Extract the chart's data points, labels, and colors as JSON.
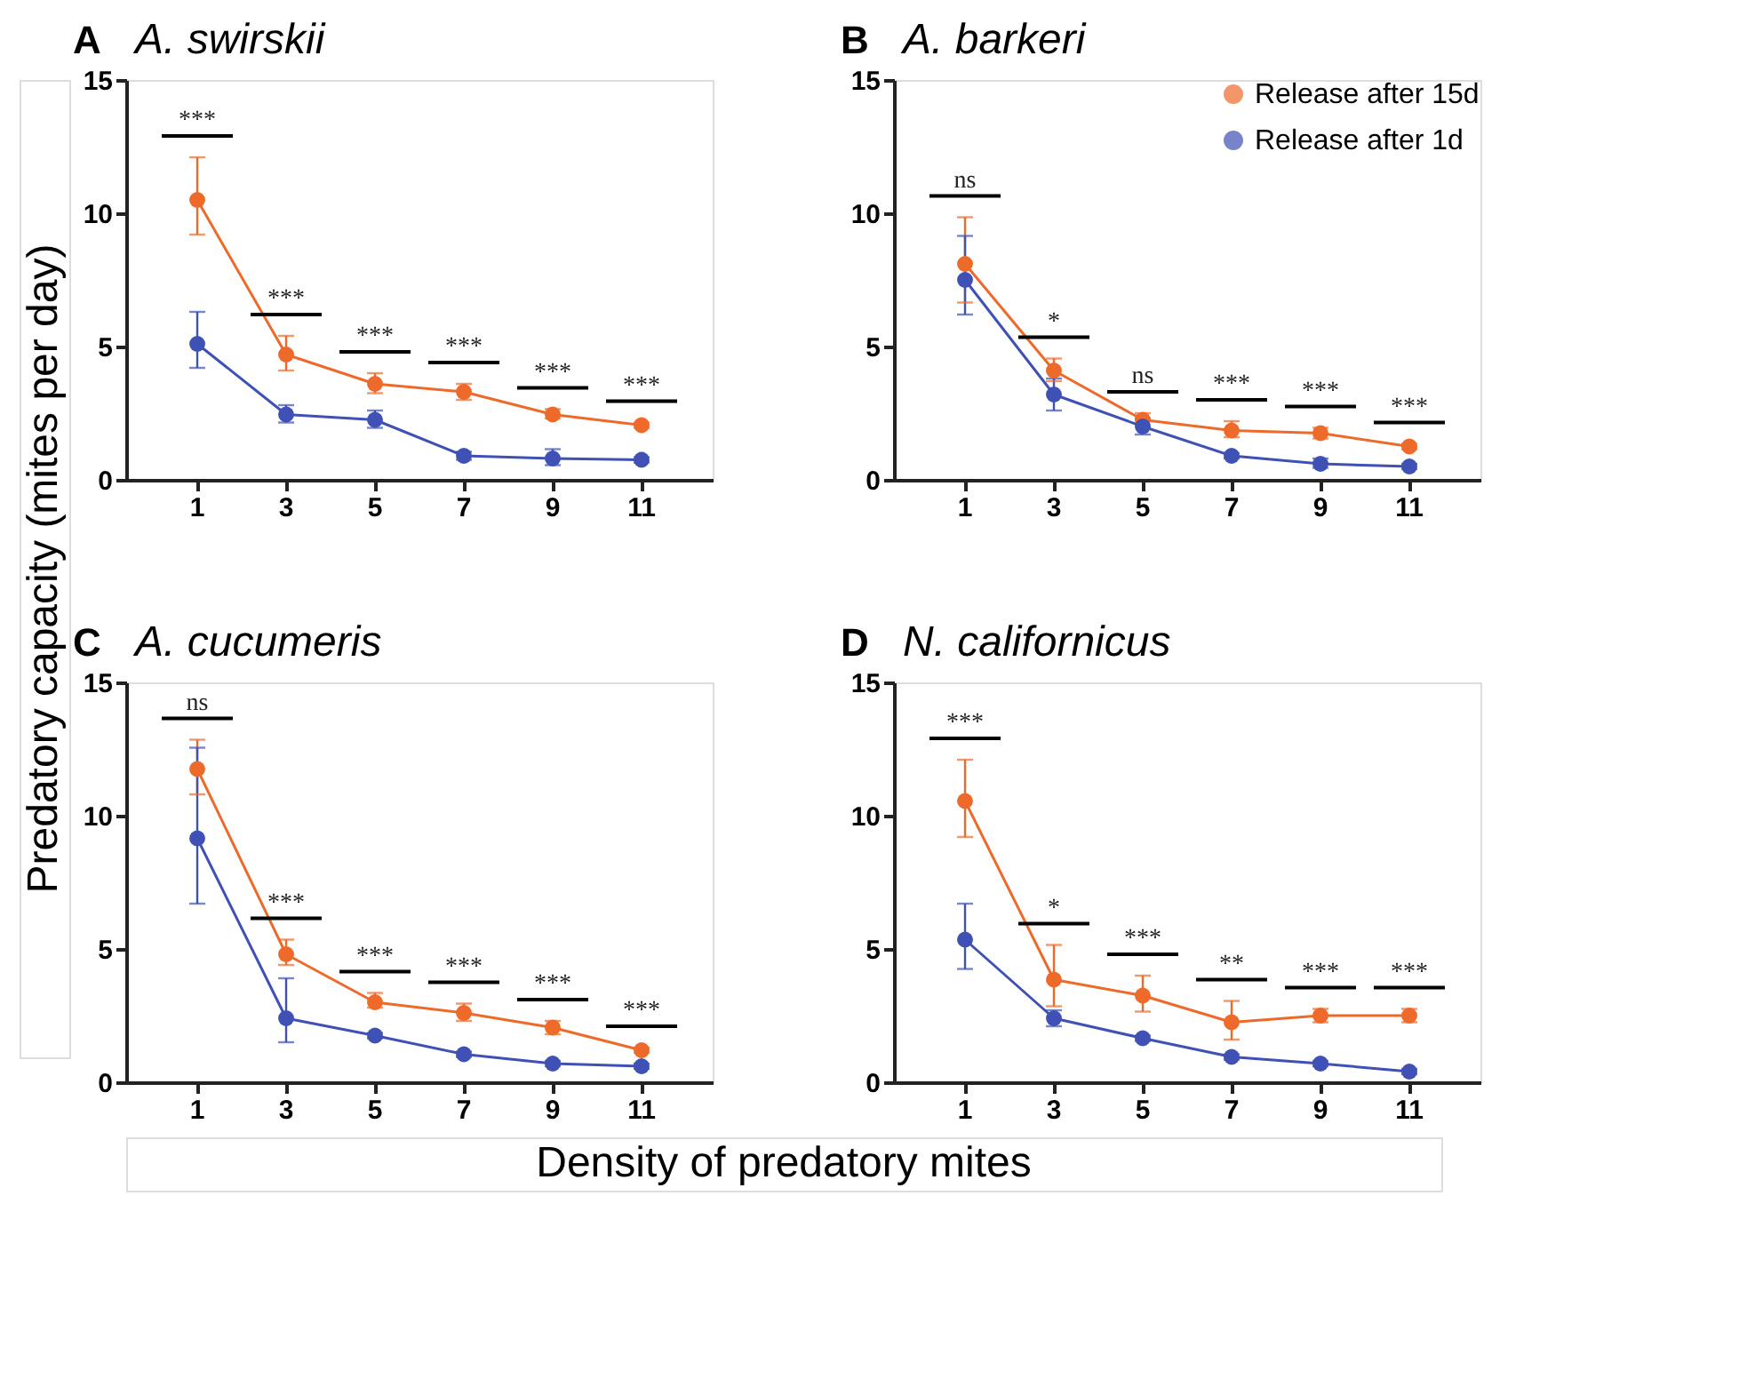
{
  "chart_data": [
    {
      "type": "line",
      "title": "A. swirskii",
      "ylabel": "Predatory capacity (mites per day)",
      "categories": [
        "1",
        "3",
        "5",
        "7",
        "9",
        "11"
      ],
      "ylim": [
        0,
        15
      ],
      "yticks": [
        0,
        5,
        10,
        15
      ],
      "grid": false,
      "marker": "circle",
      "series": [
        {
          "color": "#ee6a2a",
          "values": [
            10.5,
            4.7,
            3.6,
            3.3,
            2.45,
            2.05
          ],
          "errors": [
            [
              9.2,
              12.1
            ],
            [
              4.1,
              5.4
            ],
            [
              3.25,
              4.0
            ],
            [
              3.0,
              3.6
            ],
            [
              2.3,
              2.65
            ],
            [
              1.95,
              2.15
            ]
          ]
        },
        {
          "color": "#3f51b5",
          "values": [
            5.1,
            2.45,
            2.25,
            0.9,
            0.8,
            0.75
          ],
          "errors": [
            [
              4.2,
              6.3
            ],
            [
              2.15,
              2.8
            ],
            [
              1.95,
              2.6
            ],
            [
              0.75,
              1.05
            ],
            [
              0.55,
              1.15
            ],
            [
              0.65,
              0.85
            ]
          ]
        }
      ],
      "annotations": [
        "A",
        "***",
        "***",
        "***",
        "***",
        "***",
        "***"
      ]
    },
    {
      "type": "line",
      "title": "A. barkeri",
      "categories": [
        "1",
        "3",
        "5",
        "7",
        "9",
        "11"
      ],
      "ylim": [
        0,
        15
      ],
      "yticks": [
        0,
        5,
        10,
        15
      ],
      "grid": false,
      "marker": "circle",
      "legend": "top right",
      "series": [
        {
          "name": "Release after 15d",
          "color": "#ee6a2a",
          "values": [
            8.1,
            4.1,
            2.25,
            1.85,
            1.75,
            1.25
          ],
          "errors": [
            [
              6.65,
              9.85
            ],
            [
              3.7,
              4.55
            ],
            [
              2.25,
              2.5
            ],
            [
              1.6,
              2.2
            ],
            [
              1.55,
              1.95
            ],
            [
              1.15,
              1.35
            ]
          ]
        },
        {
          "name": "Release after 1d",
          "color": "#3f51b5",
          "values": [
            7.5,
            3.2,
            2.0,
            0.9,
            0.6,
            0.5
          ],
          "errors": [
            [
              6.2,
              9.15
            ],
            [
              2.6,
              3.8
            ],
            [
              1.7,
              2.3
            ],
            [
              0.8,
              1.0
            ],
            [
              0.45,
              0.8
            ],
            [
              0.4,
              0.6
            ]
          ]
        }
      ],
      "annotations": [
        "B",
        "ns",
        "*",
        "ns",
        "***",
        "***",
        "***"
      ]
    },
    {
      "type": "line",
      "title": "A. cucumeris",
      "xlabel": "Density of predatory mites",
      "categories": [
        "1",
        "3",
        "5",
        "7",
        "9",
        "11"
      ],
      "ylim": [
        0,
        15
      ],
      "yticks": [
        0,
        5,
        10,
        15
      ],
      "grid": false,
      "marker": "circle",
      "series": [
        {
          "color": "#ee6a2a",
          "values": [
            11.75,
            4.8,
            3.0,
            2.6,
            2.05,
            1.2
          ],
          "errors": [
            [
              10.8,
              12.85
            ],
            [
              4.4,
              5.35
            ],
            [
              2.8,
              3.35
            ],
            [
              2.3,
              2.95
            ],
            [
              1.8,
              2.3
            ],
            [
              1.1,
              1.3
            ]
          ]
        },
        {
          "color": "#3f51b5",
          "values": [
            9.15,
            2.4,
            1.75,
            1.05,
            0.7,
            0.6
          ],
          "errors": [
            [
              6.7,
              12.55
            ],
            [
              1.5,
              3.9
            ],
            [
              1.65,
              1.85
            ],
            [
              0.95,
              1.15
            ],
            [
              0.6,
              0.8
            ],
            [
              0.5,
              0.7
            ]
          ]
        }
      ],
      "annotations": [
        "C",
        "ns",
        "***",
        "***",
        "***",
        "***",
        "***"
      ]
    },
    {
      "type": "line",
      "title": "N. californicus",
      "categories": [
        "1",
        "3",
        "5",
        "7",
        "9",
        "11"
      ],
      "ylim": [
        0,
        15
      ],
      "yticks": [
        0,
        5,
        10,
        15
      ],
      "grid": false,
      "marker": "circle",
      "series": [
        {
          "color": "#ee6a2a",
          "values": [
            10.55,
            3.85,
            3.25,
            2.25,
            2.5,
            2.5
          ],
          "errors": [
            [
              9.2,
              12.1
            ],
            [
              2.85,
              5.15
            ],
            [
              2.65,
              4.0
            ],
            [
              1.6,
              3.05
            ],
            [
              2.25,
              2.75
            ],
            [
              2.25,
              2.75
            ]
          ]
        },
        {
          "color": "#3f51b5",
          "values": [
            5.35,
            2.4,
            1.65,
            0.95,
            0.7,
            0.4
          ],
          "errors": [
            [
              4.25,
              6.7
            ],
            [
              2.1,
              2.7
            ],
            [
              1.55,
              1.75
            ],
            [
              0.85,
              1.05
            ],
            [
              0.6,
              0.8
            ],
            [
              0.3,
              0.5
            ]
          ]
        }
      ],
      "annotations": [
        "D",
        "***",
        "*",
        "***",
        "**",
        "***",
        "***"
      ]
    }
  ]
}
